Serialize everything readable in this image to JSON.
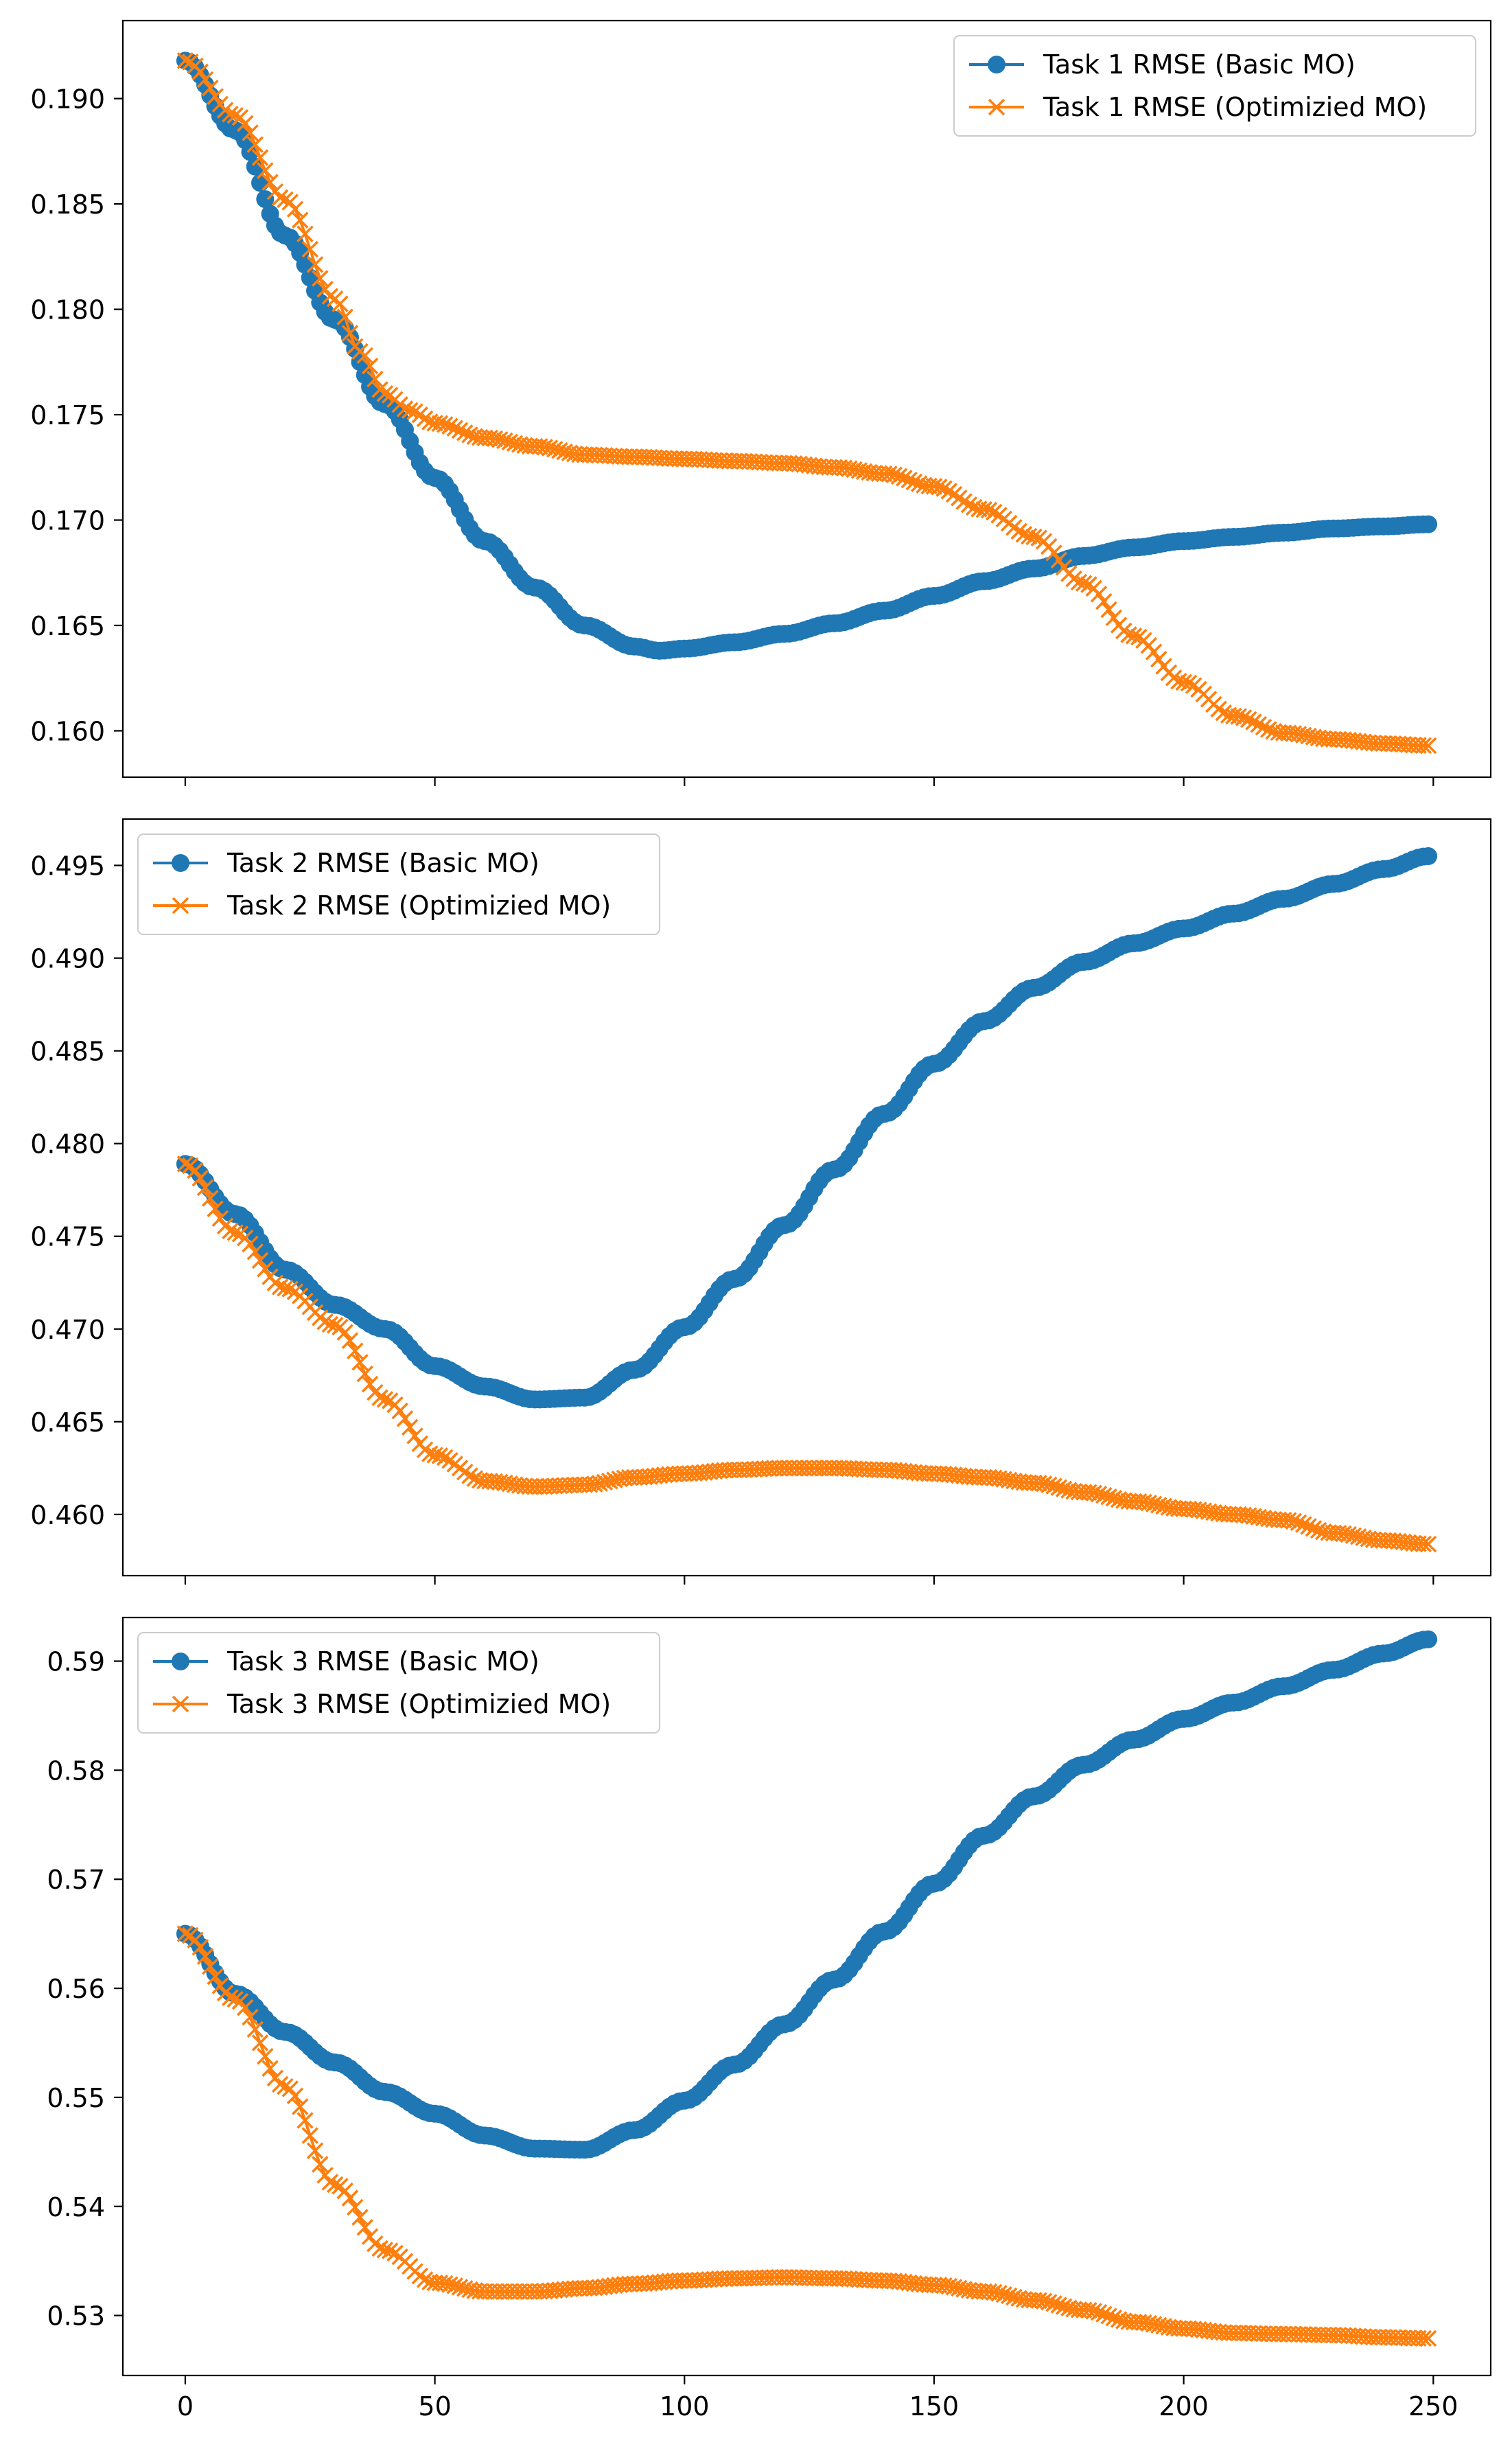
{
  "colors": {
    "basic": "#1f77b4",
    "optimized": "#ff7f0e",
    "axis": "#000000"
  },
  "x_ticks": [
    0,
    50,
    100,
    150,
    200,
    250
  ],
  "chart_data": [
    {
      "type": "line",
      "title": "",
      "xlabel": "",
      "ylabel": "",
      "xlim": [
        -12.5,
        261.5
      ],
      "ylim": [
        0.1578,
        0.1937
      ],
      "y_ticks": [
        "0.160",
        "0.165",
        "0.170",
        "0.175",
        "0.180",
        "0.185",
        "0.190"
      ],
      "legend_position": "top-right",
      "series": [
        {
          "name": "Task 1 RMSE (Basic MO)",
          "marker": "circle",
          "points": [
            [
              0,
              0.1918
            ],
            [
              10,
              0.1885
            ],
            [
              20,
              0.1835
            ],
            [
              30,
              0.1795
            ],
            [
              40,
              0.1755
            ],
            [
              50,
              0.172
            ],
            [
              60,
              0.169
            ],
            [
              70,
              0.1668
            ],
            [
              80,
              0.165
            ],
            [
              90,
              0.164
            ],
            [
              95,
              0.1638
            ],
            [
              100,
              0.1639
            ],
            [
              110,
              0.1642
            ],
            [
              120,
              0.1646
            ],
            [
              130,
              0.1651
            ],
            [
              140,
              0.1657
            ],
            [
              150,
              0.1664
            ],
            [
              160,
              0.1671
            ],
            [
              170,
              0.1677
            ],
            [
              180,
              0.1683
            ],
            [
              190,
              0.1687
            ],
            [
              200,
              0.169
            ],
            [
              210,
              0.1692
            ],
            [
              220,
              0.1694
            ],
            [
              230,
              0.1696
            ],
            [
              240,
              0.1697
            ],
            [
              249,
              0.1698
            ]
          ]
        },
        {
          "name": "Task 1 RMSE (Optimizied MO)",
          "marker": "x",
          "points": [
            [
              0,
              0.1918
            ],
            [
              10,
              0.1892
            ],
            [
              20,
              0.1852
            ],
            [
              30,
              0.1805
            ],
            [
              35,
              0.178
            ],
            [
              40,
              0.176
            ],
            [
              45,
              0.1752
            ],
            [
              50,
              0.1746
            ],
            [
              60,
              0.1739
            ],
            [
              70,
              0.1735
            ],
            [
              80,
              0.1731
            ],
            [
              90,
              0.173
            ],
            [
              100,
              0.1729
            ],
            [
              110,
              0.1728
            ],
            [
              120,
              0.1727
            ],
            [
              130,
              0.1725
            ],
            [
              140,
              0.1722
            ],
            [
              150,
              0.1716
            ],
            [
              160,
              0.1705
            ],
            [
              170,
              0.1692
            ],
            [
              180,
              0.167
            ],
            [
              190,
              0.1645
            ],
            [
              200,
              0.1623
            ],
            [
              210,
              0.1607
            ],
            [
              220,
              0.1599
            ],
            [
              230,
              0.1596
            ],
            [
              240,
              0.1594
            ],
            [
              249,
              0.1593
            ]
          ]
        }
      ]
    },
    {
      "type": "line",
      "title": "",
      "xlabel": "",
      "ylabel": "",
      "xlim": [
        -12.5,
        261.5
      ],
      "ylim": [
        0.4567,
        0.4975
      ],
      "y_ticks": [
        "0.460",
        "0.465",
        "0.470",
        "0.475",
        "0.480",
        "0.485",
        "0.490",
        "0.495"
      ],
      "legend_position": "top-left",
      "series": [
        {
          "name": "Task 2 RMSE (Basic MO)",
          "marker": "circle",
          "points": [
            [
              0,
              0.4789
            ],
            [
              10,
              0.4762
            ],
            [
              20,
              0.4732
            ],
            [
              30,
              0.4713
            ],
            [
              40,
              0.47
            ],
            [
              50,
              0.468
            ],
            [
              60,
              0.4669
            ],
            [
              70,
              0.4662
            ],
            [
              80,
              0.4663
            ],
            [
              90,
              0.4678
            ],
            [
              100,
              0.4701
            ],
            [
              110,
              0.4727
            ],
            [
              120,
              0.4756
            ],
            [
              130,
              0.4786
            ],
            [
              140,
              0.4816
            ],
            [
              150,
              0.4843
            ],
            [
              160,
              0.4866
            ],
            [
              170,
              0.4884
            ],
            [
              180,
              0.4898
            ],
            [
              190,
              0.4908
            ],
            [
              200,
              0.4916
            ],
            [
              210,
              0.4924
            ],
            [
              220,
              0.4932
            ],
            [
              230,
              0.494
            ],
            [
              240,
              0.4948
            ],
            [
              249,
              0.4955
            ]
          ]
        },
        {
          "name": "Task 2 RMSE (Optimizied MO)",
          "marker": "x",
          "points": [
            [
              0,
              0.4789
            ],
            [
              10,
              0.4752
            ],
            [
              20,
              0.4722
            ],
            [
              30,
              0.4702
            ],
            [
              40,
              0.4662
            ],
            [
              50,
              0.4632
            ],
            [
              60,
              0.4618
            ],
            [
              70,
              0.4615
            ],
            [
              80,
              0.4616
            ],
            [
              90,
              0.462
            ],
            [
              100,
              0.4622
            ],
            [
              110,
              0.4624
            ],
            [
              120,
              0.4625
            ],
            [
              130,
              0.4625
            ],
            [
              140,
              0.4624
            ],
            [
              150,
              0.4622
            ],
            [
              160,
              0.462
            ],
            [
              170,
              0.4617
            ],
            [
              180,
              0.4612
            ],
            [
              190,
              0.4607
            ],
            [
              200,
              0.4603
            ],
            [
              210,
              0.46
            ],
            [
              220,
              0.4597
            ],
            [
              230,
              0.459
            ],
            [
              240,
              0.4586
            ],
            [
              249,
              0.4584
            ]
          ]
        }
      ]
    },
    {
      "type": "line",
      "title": "",
      "xlabel": "",
      "ylabel": "",
      "xlim": [
        -12.5,
        261.5
      ],
      "ylim": [
        0.5245,
        0.594
      ],
      "y_ticks": [
        "0.53",
        "0.54",
        "0.55",
        "0.56",
        "0.57",
        "0.58",
        "0.59"
      ],
      "legend_position": "top-left",
      "series": [
        {
          "name": "Task 3 RMSE (Basic MO)",
          "marker": "circle",
          "points": [
            [
              0,
              0.565
            ],
            [
              10,
              0.5595
            ],
            [
              20,
              0.556
            ],
            [
              30,
              0.5532
            ],
            [
              40,
              0.5505
            ],
            [
              50,
              0.5485
            ],
            [
              60,
              0.5465
            ],
            [
              70,
              0.5453
            ],
            [
              80,
              0.5452
            ],
            [
              90,
              0.547
            ],
            [
              100,
              0.5497
            ],
            [
              110,
              0.553
            ],
            [
              120,
              0.5567
            ],
            [
              130,
              0.5608
            ],
            [
              140,
              0.5652
            ],
            [
              150,
              0.5696
            ],
            [
              160,
              0.574
            ],
            [
              170,
              0.5776
            ],
            [
              180,
              0.5805
            ],
            [
              190,
              0.5828
            ],
            [
              200,
              0.5847
            ],
            [
              210,
              0.5862
            ],
            [
              220,
              0.5877
            ],
            [
              230,
              0.5892
            ],
            [
              240,
              0.5907
            ],
            [
              249,
              0.592
            ]
          ]
        },
        {
          "name": "Task 3 RMSE (Optimizied MO)",
          "marker": "x",
          "points": [
            [
              0,
              0.565
            ],
            [
              10,
              0.559
            ],
            [
              20,
              0.551
            ],
            [
              30,
              0.542
            ],
            [
              40,
              0.536
            ],
            [
              50,
              0.533
            ],
            [
              60,
              0.5322
            ],
            [
              70,
              0.5322
            ],
            [
              80,
              0.5325
            ],
            [
              90,
              0.5329
            ],
            [
              100,
              0.5332
            ],
            [
              110,
              0.5334
            ],
            [
              120,
              0.5335
            ],
            [
              130,
              0.5334
            ],
            [
              140,
              0.5332
            ],
            [
              150,
              0.5328
            ],
            [
              160,
              0.5322
            ],
            [
              170,
              0.5314
            ],
            [
              180,
              0.5305
            ],
            [
              190,
              0.5294
            ],
            [
              200,
              0.5288
            ],
            [
              210,
              0.5284
            ],
            [
              220,
              0.5283
            ],
            [
              230,
              0.5282
            ],
            [
              240,
              0.528
            ],
            [
              249,
              0.5279
            ]
          ]
        }
      ]
    }
  ]
}
